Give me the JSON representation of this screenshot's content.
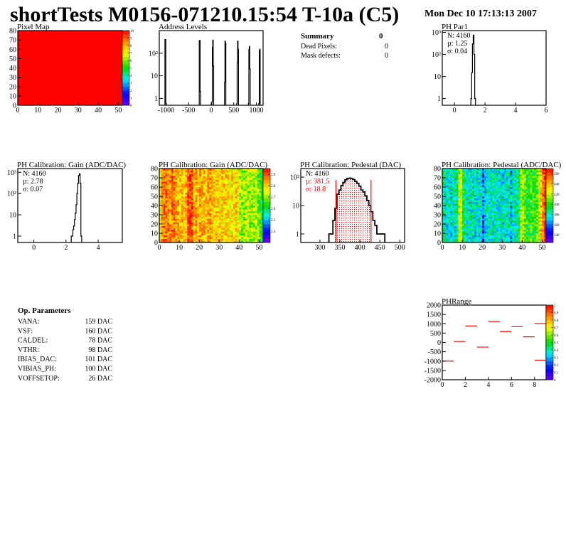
{
  "header": {
    "title": "shortTests M0156-071210.15:54 T-10a (C5)",
    "date": "Mon Dec 10 17:13:13 2007"
  },
  "summary": {
    "title": "Summary",
    "value": "0",
    "rows": [
      {
        "label": "Dead Pixels:",
        "value": "0"
      },
      {
        "label": "Mask defects:",
        "value": "0"
      }
    ]
  },
  "op_params": {
    "title": "Op. Parameters",
    "rows": [
      {
        "label": "VANA:",
        "value": "159 DAC"
      },
      {
        "label": "VSF:",
        "value": "160 DAC"
      },
      {
        "label": "CALDEL:",
        "value": "78 DAC"
      },
      {
        "label": "VTHR:",
        "value": "98 DAC"
      },
      {
        "label": "IBIAS_DAC:",
        "value": "101 DAC"
      },
      {
        "label": "VIBIAS_PH:",
        "value": "100 DAC"
      },
      {
        "label": "VOFFSETOP:",
        "value": "26 DAC"
      }
    ]
  },
  "colors": {
    "hist_line": "#000000",
    "fit": "#ff0000",
    "pixelmap_fill": "#ff0000"
  },
  "chart_data": [
    {
      "id": "pixelmap",
      "type": "heatmap",
      "title": "Pixel Map",
      "xlim": [
        0,
        52
      ],
      "ylim": [
        0,
        80
      ],
      "zlim": [
        0,
        10
      ],
      "xticks": [
        "0",
        "10",
        "20",
        "30",
        "40",
        "50"
      ],
      "yticks": [
        "0",
        "10",
        "20",
        "30",
        "40",
        "50",
        "60",
        "70",
        "80"
      ],
      "zticks": [
        "0",
        "1",
        "2",
        "3",
        "4",
        "5",
        "6",
        "7",
        "8",
        "9",
        "10"
      ],
      "uniform_value": 10
    },
    {
      "id": "address",
      "type": "bar",
      "title": "Address Levels",
      "xlim": [
        -1150,
        1150
      ],
      "ylim": [
        0.5,
        1000
      ],
      "log_y": true,
      "xticks": [
        "-1000",
        "-500",
        "0",
        "500",
        "1000"
      ],
      "yticks": [
        "1",
        "10",
        "10²"
      ],
      "x": [
        -1020,
        -1010,
        -1000,
        -260,
        -250,
        -240,
        20,
        30,
        40,
        50,
        300,
        310,
        320,
        330,
        570,
        580,
        590,
        600,
        830,
        840,
        850,
        860,
        1060,
        1070,
        1080
      ],
      "values": [
        400,
        400,
        0.6,
        350,
        370,
        2,
        0.7,
        180,
        380,
        27,
        5,
        340,
        270,
        0,
        0.6,
        38,
        340,
        150,
        0.6,
        150,
        200,
        20,
        0.6,
        130,
        150
      ],
      "bin_width": 10
    },
    {
      "id": "phpar1",
      "type": "bar",
      "title": "PH Par1",
      "xlim": [
        -0.8,
        6
      ],
      "ylim": [
        0.5,
        1200
      ],
      "log_y": true,
      "xticks": [
        "0",
        "2",
        "4",
        "6"
      ],
      "yticks": [
        "1",
        "10",
        "10²",
        "10³"
      ],
      "x": [
        1.1,
        1.15,
        1.2,
        1.25,
        1.3,
        1.35
      ],
      "values": [
        1,
        15,
        300,
        750,
        100,
        1
      ],
      "bin_width": 0.05,
      "stats": {
        "N": "N: 4160",
        "mean": "µ: 1.25",
        "sigma": "σ: 0.04"
      }
    },
    {
      "id": "gain_hist",
      "type": "bar",
      "title": "PH Calibration: Gain (ADC/DAC)",
      "xlim": [
        -1,
        5.5
      ],
      "ylim": [
        0.5,
        1500
      ],
      "log_y": true,
      "xticks": [
        "0",
        "2",
        "4"
      ],
      "yticks": [
        "1",
        "10",
        "10²",
        "10³"
      ],
      "x": [
        2.35,
        2.4,
        2.45,
        2.5,
        2.55,
        2.6,
        2.65,
        2.7,
        2.75,
        2.8,
        2.85,
        2.9,
        2.95
      ],
      "values": [
        1,
        1,
        2,
        3,
        6,
        12,
        30,
        100,
        300,
        700,
        850,
        300,
        1
      ],
      "bin_width": 0.05,
      "stats": {
        "N": "N: 4160",
        "mean": "µ: 2.78",
        "sigma": "σ: 0.07"
      }
    },
    {
      "id": "gain_map",
      "type": "heatmap",
      "title": "PH Calibration: Gain (ADC/DAC)",
      "xlim": [
        0,
        52
      ],
      "ylim": [
        0,
        80
      ],
      "zlim": [
        2.3,
        2.95
      ],
      "xticks": [
        "0",
        "10",
        "20",
        "30",
        "40",
        "50"
      ],
      "yticks": [
        "0",
        "10",
        "20",
        "30",
        "40",
        "50",
        "60",
        "70",
        "80"
      ],
      "zticks": [
        "2.4",
        "2.5",
        "2.6",
        "2.7",
        "2.8",
        "2.9"
      ],
      "column_means": [
        2.76,
        2.85,
        2.87,
        2.86,
        2.85,
        2.84,
        2.87,
        2.86,
        2.83,
        2.82,
        2.8,
        2.81,
        2.8,
        2.82,
        2.9,
        2.91,
        2.89,
        2.82,
        2.83,
        2.81,
        2.84,
        2.83,
        2.82,
        2.8,
        2.83,
        2.84,
        2.8,
        2.79,
        2.8,
        2.79,
        2.78,
        2.8,
        2.79,
        2.8,
        2.78,
        2.77,
        2.79,
        2.78,
        2.8,
        2.77,
        2.7,
        2.68,
        2.7,
        2.71,
        2.72,
        2.7,
        2.69,
        2.71,
        2.72,
        2.7,
        2.65,
        2.6
      ]
    },
    {
      "id": "ped_hist",
      "type": "bar",
      "title": "PH Calibration: Pedestal (DAC)",
      "xlim": [
        252,
        512
      ],
      "ylim": [
        0.5,
        200
      ],
      "log_y": true,
      "xticks": [
        "300",
        "350",
        "400",
        "450",
        "500"
      ],
      "yticks": [
        "1",
        "10",
        "10²"
      ],
      "x": [
        325,
        330,
        335,
        340,
        345,
        350,
        355,
        360,
        365,
        370,
        375,
        380,
        385,
        390,
        395,
        400,
        405,
        410,
        415,
        420,
        425,
        430,
        435,
        440,
        445,
        450,
        455,
        460
      ],
      "values": [
        1,
        1,
        3,
        8,
        25,
        35,
        50,
        65,
        80,
        90,
        92,
        88,
        82,
        70,
        60,
        48,
        35,
        30,
        22,
        15,
        10,
        6,
        3,
        2,
        1,
        1,
        1,
        1
      ],
      "bin_width": 5,
      "fit_range": [
        340,
        428
      ],
      "stats": {
        "N": "N: 4160",
        "mean": "µ: 381.5",
        "sigma": "σ: 18.8"
      }
    },
    {
      "id": "ped_map",
      "type": "heatmap",
      "title": "PH Calibration: Pedestal (ADC/DAC)",
      "xlim": [
        0,
        52
      ],
      "ylim": [
        0,
        80
      ],
      "zlim": [
        325,
        470
      ],
      "xticks": [
        "0",
        "10",
        "20",
        "30",
        "40",
        "50"
      ],
      "yticks": [
        "0",
        "10",
        "20",
        "30",
        "40",
        "50",
        "60",
        "70",
        "80"
      ],
      "zticks": [
        "340",
        "360",
        "380",
        "400",
        "420",
        "440",
        "460"
      ],
      "column_means": [
        385,
        380,
        378,
        382,
        375,
        380,
        378,
        385,
        420,
        425,
        395,
        385,
        380,
        378,
        382,
        380,
        375,
        380,
        378,
        382,
        360,
        375,
        380,
        378,
        382,
        380,
        385,
        378,
        380,
        382,
        375,
        380,
        378,
        382,
        365,
        380,
        382,
        385,
        390,
        420,
        415,
        405,
        400,
        395,
        410,
        400,
        398,
        405,
        420,
        440,
        455,
        465
      ]
    },
    {
      "id": "phrange",
      "type": "segments",
      "title": "PHRange",
      "xlim": [
        0,
        9
      ],
      "ylim": [
        -2000,
        2000
      ],
      "zlim": [
        0,
        1
      ],
      "xticks": [
        "0",
        "2",
        "4",
        "6",
        "8"
      ],
      "yticks": [
        "-2000",
        "-1500",
        "-1000",
        "-500",
        "0",
        "500",
        "1000",
        "1500",
        "2000"
      ],
      "zticks": [
        "0",
        "0.1",
        "0.2",
        "0.3",
        "0.4",
        "0.5",
        "0.6",
        "0.7",
        "0.8",
        "0.9",
        "1"
      ],
      "segments": [
        {
          "x": 0,
          "y": -1000
        },
        {
          "x": 1,
          "y": 50
        },
        {
          "x": 2,
          "y": 880
        },
        {
          "x": 3,
          "y": -250
        },
        {
          "x": 4,
          "y": 1120
        },
        {
          "x": 5,
          "y": 580
        },
        {
          "x": 6,
          "y": 840
        },
        {
          "x": 7,
          "y": 300
        },
        {
          "x": 8,
          "y": 1000
        },
        {
          "x": 8,
          "y": -950
        }
      ]
    }
  ]
}
